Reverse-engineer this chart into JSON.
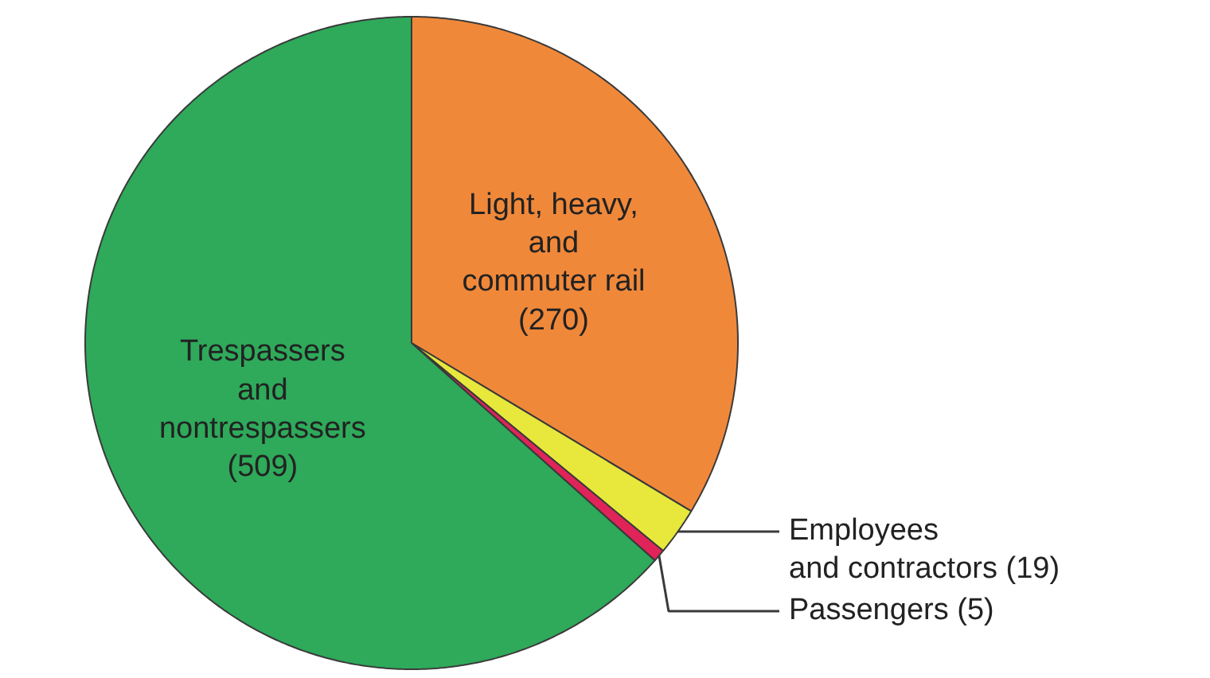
{
  "chart_data": {
    "type": "pie",
    "categories": [
      "Light, heavy,\nand\ncommuter rail",
      "Employees\nand contractors",
      "Passengers",
      "Trespassers\nand\nnontrespassers"
    ],
    "values": [
      270,
      19,
      5,
      509
    ],
    "colors": [
      "#f0883a",
      "#e8e83c",
      "#e0245a",
      "#2eaa5a"
    ],
    "value_labels": [
      "(270)",
      "(19)",
      "(5)",
      "(509)"
    ]
  }
}
